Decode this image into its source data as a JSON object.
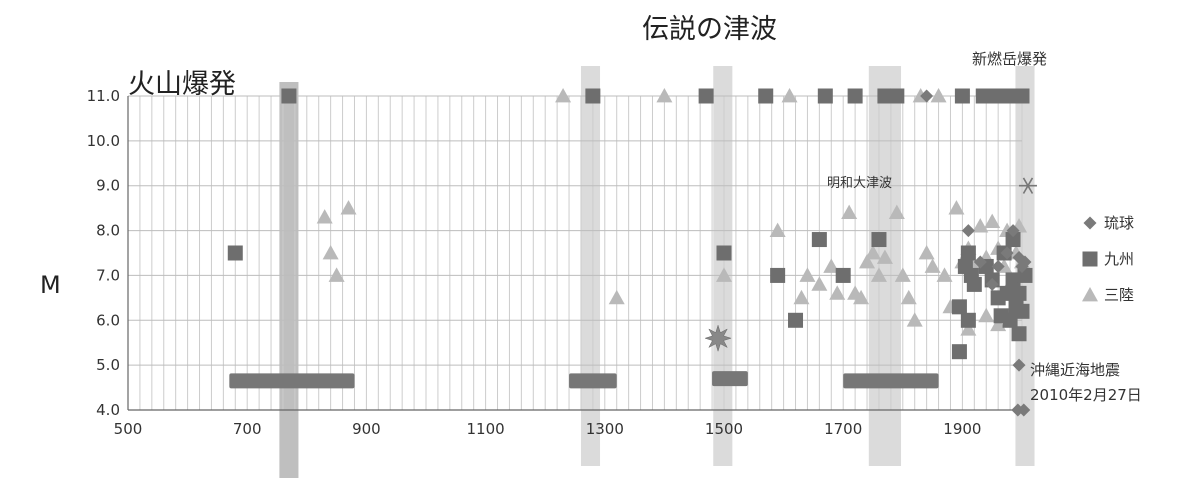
{
  "chart_data": {
    "type": "scatter",
    "title": "",
    "xlabel": "",
    "ylabel": "M",
    "xlim": [
      500,
      2000
    ],
    "ylim": [
      4.0,
      11.0
    ],
    "x_ticks": [
      "500",
      "700",
      "900",
      "1100",
      "1300",
      "1500",
      "1700",
      "1900"
    ],
    "y_ticks": [
      "4.0",
      "5.0",
      "6.0",
      "7.0",
      "8.0",
      "9.0",
      "10.0",
      "11.0"
    ],
    "grid": true,
    "legend_position": "right",
    "legend": [
      "琉球",
      "九州",
      "三陸"
    ],
    "colors": {
      "ryukyu": "#7a7a7a",
      "kyushu": "#6e6e6e",
      "sanriku": "#b9b9b9",
      "band": "#cfcfcf",
      "band_dark": "#a9a9a9"
    },
    "annotations": {
      "volcano": "火山爆発",
      "legend_tsunami": "伝説の津波",
      "shinmoedake": "新燃岳爆発",
      "meiwa": "明和大津波",
      "okinawa_line1": "沖縄近海地震",
      "okinawa_line2": "2010年2月27日"
    },
    "highlight_bands": [
      {
        "name": "volcano-band",
        "x_from": 754,
        "x_to": 786,
        "shade": "dark"
      },
      {
        "name": "band-1280",
        "x_from": 1260,
        "x_to": 1292,
        "shade": "light"
      },
      {
        "name": "band-1500",
        "x_from": 1482,
        "x_to": 1514,
        "shade": "light"
      },
      {
        "name": "band-1770",
        "x_from": 1743,
        "x_to": 1797,
        "shade": "light"
      },
      {
        "name": "band-2000",
        "x_from": 1989,
        "x_to": 2021,
        "shade": "light"
      }
    ],
    "range_bars": [
      {
        "x_from": 670,
        "x_to": 880,
        "y": 4.65
      },
      {
        "x_from": 1240,
        "x_to": 1320,
        "y": 4.65
      },
      {
        "x_from": 1480,
        "x_to": 1540,
        "y": 4.7
      },
      {
        "x_from": 1700,
        "x_to": 1860,
        "y": 4.65
      }
    ],
    "series": [
      {
        "name": "琉球",
        "marker": "diamond",
        "points": [
          [
            1840,
            11.0
          ],
          [
            1910,
            8.0
          ],
          [
            1930,
            7.3
          ],
          [
            1950,
            6.8
          ],
          [
            1960,
            7.2
          ],
          [
            1975,
            7.5
          ],
          [
            1985,
            8.0
          ],
          [
            1995,
            7.4
          ],
          [
            2000,
            7.2
          ],
          [
            2005,
            7.3
          ],
          [
            1995,
            5.0
          ],
          [
            1993,
            4.0
          ],
          [
            2003,
            4.0
          ]
        ]
      },
      {
        "name": "九州",
        "marker": "square",
        "points": [
          [
            680,
            7.5
          ],
          [
            770,
            11.0
          ],
          [
            1280,
            11.0
          ],
          [
            1470,
            11.0
          ],
          [
            1500,
            7.5
          ],
          [
            1570,
            11.0
          ],
          [
            1590,
            7.0
          ],
          [
            1620,
            6.0
          ],
          [
            1660,
            7.8
          ],
          [
            1670,
            11.0
          ],
          [
            1700,
            7.0
          ],
          [
            1720,
            11.0
          ],
          [
            1760,
            7.8
          ],
          [
            1770,
            11.0
          ],
          [
            1790,
            11.0
          ],
          [
            1895,
            6.3
          ],
          [
            1895,
            5.3
          ],
          [
            1900,
            11.0
          ],
          [
            1905,
            7.2
          ],
          [
            1910,
            7.5
          ],
          [
            1910,
            6.0
          ],
          [
            1915,
            7.0
          ],
          [
            1920,
            6.8
          ],
          [
            1935,
            11.0
          ],
          [
            1940,
            7.2
          ],
          [
            1945,
            11.0
          ],
          [
            1950,
            6.9
          ],
          [
            1960,
            11.0
          ],
          [
            1960,
            6.5
          ],
          [
            1965,
            6.1
          ],
          [
            1970,
            11.0
          ],
          [
            1970,
            7.5
          ],
          [
            1975,
            6.6
          ],
          [
            1980,
            11.0
          ],
          [
            1980,
            6.0
          ],
          [
            1985,
            7.8
          ],
          [
            1985,
            6.9
          ],
          [
            1990,
            11.0
          ],
          [
            1990,
            6.3
          ],
          [
            1995,
            6.6
          ],
          [
            1995,
            5.7
          ],
          [
            2000,
            11.0
          ],
          [
            2000,
            6.2
          ],
          [
            2005,
            7.0
          ]
        ]
      },
      {
        "name": "三陸",
        "marker": "triangle",
        "points": [
          [
            830,
            8.3
          ],
          [
            840,
            7.5
          ],
          [
            850,
            7.0
          ],
          [
            870,
            8.5
          ],
          [
            1230,
            11.0
          ],
          [
            1320,
            6.5
          ],
          [
            1400,
            11.0
          ],
          [
            1500,
            7.0
          ],
          [
            1590,
            8.0
          ],
          [
            1610,
            11.0
          ],
          [
            1630,
            6.5
          ],
          [
            1640,
            7.0
          ],
          [
            1660,
            6.8
          ],
          [
            1680,
            7.2
          ],
          [
            1690,
            6.6
          ],
          [
            1710,
            8.4
          ],
          [
            1720,
            6.6
          ],
          [
            1730,
            6.5
          ],
          [
            1740,
            7.3
          ],
          [
            1750,
            7.5
          ],
          [
            1760,
            7.0
          ],
          [
            1770,
            7.4
          ],
          [
            1780,
            11.0
          ],
          [
            1790,
            8.4
          ],
          [
            1800,
            7.0
          ],
          [
            1810,
            6.5
          ],
          [
            1820,
            6.0
          ],
          [
            1830,
            11.0
          ],
          [
            1840,
            7.5
          ],
          [
            1850,
            7.2
          ],
          [
            1860,
            11.0
          ],
          [
            1870,
            7.0
          ],
          [
            1880,
            6.3
          ],
          [
            1890,
            8.5
          ],
          [
            1900,
            7.3
          ],
          [
            1910,
            7.6
          ],
          [
            1920,
            7.2
          ],
          [
            1930,
            8.1
          ],
          [
            1940,
            7.4
          ],
          [
            1950,
            8.2
          ],
          [
            1960,
            7.6
          ],
          [
            1970,
            7.2
          ],
          [
            1975,
            8.0
          ],
          [
            1980,
            6.8
          ],
          [
            1990,
            7.5
          ],
          [
            1995,
            8.1
          ],
          [
            2000,
            7.3
          ],
          [
            1910,
            5.8
          ],
          [
            1940,
            6.1
          ],
          [
            1960,
            5.9
          ]
        ]
      },
      {
        "name": "",
        "marker": "star",
        "points": [
          [
            1490,
            5.6
          ]
        ]
      },
      {
        "name": "",
        "marker": "asterisk",
        "points": [
          [
            2010,
            9.0
          ]
        ]
      }
    ]
  }
}
